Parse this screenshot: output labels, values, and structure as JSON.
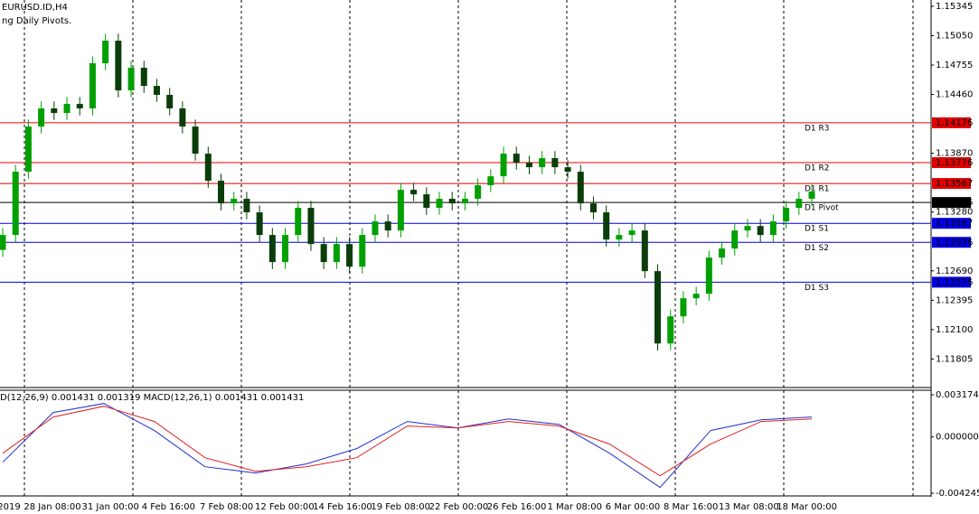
{
  "chart_data": [
    {
      "type": "candlestick",
      "title": "EURUSD.ID,H4",
      "subtitle": "ng Daily Pivots.",
      "up_color": "#00a000",
      "down_color": "#0a3d0a",
      "ylim": [
        1.11528,
        1.15408
      ],
      "yticks": [
        1.15345,
        {
          "value": 1.1505,
          "label": "1.15050"
        },
        1.14755,
        {
          "value": 1.1446,
          "label": "1.14460"
        },
        {
          "value": 1.1387,
          "label": "1.13870"
        },
        {
          "value": 1.1328,
          "label": "1.13280"
        },
        {
          "value": 1.1269,
          "label": "1.12690"
        },
        1.12395,
        {
          "value": 1.121,
          "label": "1.12100"
        },
        1.11805
      ],
      "time_labels": [
        "2019",
        "28 Jan 08:00",
        "31 Jan 00:00",
        "4 Feb 16:00",
        "7 Feb 08:00",
        "12 Feb 00:00",
        "14 Feb 16:00",
        "19 Feb 08:00",
        "22 Feb 00:00",
        "26 Feb 16:00",
        "1 Mar 08:00",
        "6 Mar 00:00",
        "8 Mar 16:00",
        "13 Mar 08:00",
        "18 Mar 00:00"
      ],
      "levels": [
        {
          "name": "D1 R3",
          "value": 1.14176,
          "color": "#e00000"
        },
        {
          "name": "D1 R2",
          "value": 1.13776,
          "color": "#e00000"
        },
        {
          "name": "D1 R1",
          "value": 1.13567,
          "color": "#e00000"
        },
        {
          "name": "D1 Pivot",
          "value": 1.13376,
          "color": "#000000"
        },
        {
          "name": "D1 S1",
          "value": 1.13167,
          "color": "#0000e0"
        },
        {
          "name": "D1 S2",
          "value": 1.12976,
          "color": "#0000e0"
        },
        {
          "name": "D1 S3",
          "value": 1.12576,
          "color": "#0000e0"
        }
      ],
      "open": [
        1.129,
        1.1305,
        1.13685,
        1.14138,
        1.1432,
        1.14274,
        1.14365,
        1.1432,
        1.14773,
        1.15,
        1.14501,
        1.14728,
        1.14546,
        1.14456,
        1.1432,
        1.14138,
        1.13866,
        1.13594,
        1.13367,
        1.13413,
        1.13277,
        1.1305,
        1.12778,
        1.1305,
        1.13322,
        1.12959,
        1.12778,
        1.12959,
        1.12732,
        1.1305,
        1.13186,
        1.13095,
        1.13503,
        1.13458,
        1.13322,
        1.13413,
        1.13367,
        1.13413,
        1.13549,
        1.13639,
        1.13866,
        1.13775,
        1.1373,
        1.13821,
        1.1373,
        1.13685,
        1.13367,
        1.13277,
        1.13004,
        1.1305,
        1.13095,
        1.12687,
        1.11961,
        1.12233,
        1.12415,
        1.1246,
        1.12823,
        1.12914,
        1.13095,
        1.1314,
        1.1305,
        1.13186,
        1.13322,
        1.13413
      ],
      "high": [
        1.1312,
        1.13755,
        1.14208,
        1.1439,
        1.1439,
        1.14435,
        1.14435,
        1.14843,
        1.1507,
        1.1507,
        1.14798,
        1.14798,
        1.14616,
        1.14526,
        1.1439,
        1.14208,
        1.13936,
        1.13664,
        1.13483,
        1.13483,
        1.13347,
        1.1312,
        1.1312,
        1.13392,
        1.13392,
        1.13029,
        1.13029,
        1.13029,
        1.1312,
        1.13256,
        1.13256,
        1.13573,
        1.13573,
        1.13528,
        1.13483,
        1.13483,
        1.13483,
        1.13619,
        1.13709,
        1.13936,
        1.13936,
        1.13845,
        1.13891,
        1.13891,
        1.138,
        1.13755,
        1.13437,
        1.13347,
        1.1312,
        1.13165,
        1.13165,
        1.12757,
        1.12303,
        1.12485,
        1.1253,
        1.12893,
        1.12984,
        1.13165,
        1.1321,
        1.1321,
        1.13256,
        1.13392,
        1.13483,
        1.13555
      ],
      "low": [
        1.1283,
        1.1298,
        1.13615,
        1.14068,
        1.14204,
        1.14204,
        1.1425,
        1.1425,
        1.14703,
        1.14431,
        1.14431,
        1.14476,
        1.14386,
        1.1425,
        1.14068,
        1.13796,
        1.13524,
        1.13297,
        1.13297,
        1.13207,
        1.1298,
        1.12708,
        1.12708,
        1.1298,
        1.12889,
        1.12708,
        1.12708,
        1.12662,
        1.12662,
        1.1298,
        1.13025,
        1.13025,
        1.13388,
        1.13252,
        1.13252,
        1.13297,
        1.13297,
        1.13343,
        1.13479,
        1.13569,
        1.13705,
        1.1366,
        1.1366,
        1.1366,
        1.13615,
        1.13297,
        1.13207,
        1.12934,
        1.12934,
        1.1298,
        1.12617,
        1.11891,
        1.11891,
        1.12163,
        1.12345,
        1.1239,
        1.12753,
        1.12844,
        1.13025,
        1.1298,
        1.1298,
        1.13116,
        1.13252,
        1.13343
      ],
      "close": [
        1.1305,
        1.13685,
        1.14138,
        1.1432,
        1.14274,
        1.14365,
        1.1432,
        1.14773,
        1.15,
        1.14501,
        1.14728,
        1.14546,
        1.14456,
        1.1432,
        1.14138,
        1.13866,
        1.13594,
        1.13367,
        1.13413,
        1.13277,
        1.1305,
        1.12778,
        1.1305,
        1.13322,
        1.12959,
        1.12778,
        1.12959,
        1.12732,
        1.1305,
        1.13186,
        1.13095,
        1.13503,
        1.13458,
        1.13322,
        1.13413,
        1.13367,
        1.13413,
        1.13549,
        1.13639,
        1.13866,
        1.13775,
        1.1373,
        1.13821,
        1.1373,
        1.13685,
        1.13367,
        1.13277,
        1.13004,
        1.1305,
        1.13095,
        1.12687,
        1.11961,
        1.12233,
        1.12415,
        1.1246,
        1.12823,
        1.12914,
        1.13095,
        1.1314,
        1.1305,
        1.13186,
        1.13322,
        1.13413,
        1.13485
      ]
    },
    {
      "type": "line",
      "title": "D(12,26,9) 0.001431 0.001319 MACD(12,26,1) 0.001431 0.001431",
      "ylim": [
        -0.00445,
        0.00345
      ],
      "yticks": [
        0.003174,
        {
          "value": 0,
          "label": "0.000000"
        },
        -0.004245
      ],
      "series": [
        {
          "color": "#2030d0",
          "values": [
            -0.00191,
            0.00184,
            0.00252,
            0.00048,
            -0.00225,
            -0.00272,
            -0.00204,
            -0.00088,
            0.00116,
            0.00068,
            0.00136,
            0.00095,
            -0.00123,
            -0.00381,
            0.00048,
            0.00129,
            0.0015
          ]
        },
        {
          "color": "#e02020",
          "values": [
            -0.00123,
            0.0015,
            0.00231,
            0.00116,
            -0.00157,
            -0.00259,
            -0.00225,
            -0.00157,
            0.00082,
            0.00068,
            0.00116,
            0.00082,
            -0.00054,
            -0.00293,
            -0.00054,
            0.00116,
            0.00136
          ]
        }
      ]
    }
  ]
}
